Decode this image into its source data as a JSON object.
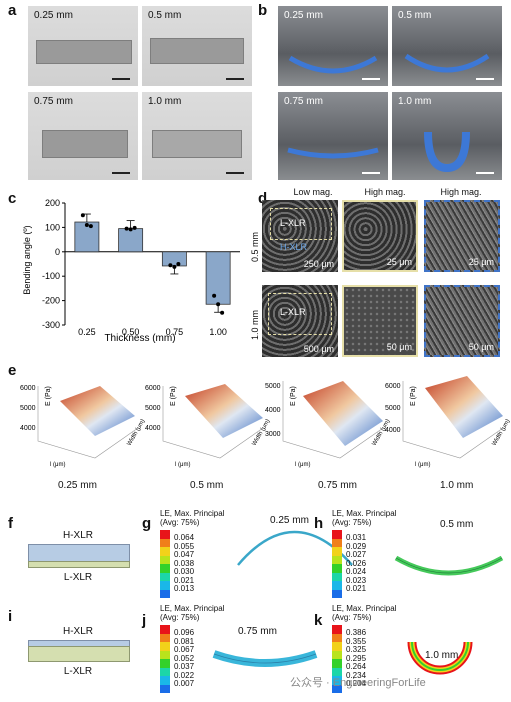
{
  "panels": {
    "a": "a",
    "b": "b",
    "c": "c",
    "d": "d",
    "e": "e",
    "f": "f",
    "g": "g",
    "h": "h",
    "i": "i",
    "j": "j",
    "k": "k"
  },
  "panel_a": {
    "labels": [
      "0.25 mm",
      "0.5 mm",
      "0.75 mm",
      "1.0 mm"
    ]
  },
  "panel_b": {
    "labels": [
      "0.25 mm",
      "0.5 mm",
      "0.75 mm",
      "1.0 mm"
    ]
  },
  "chart_data": {
    "type": "bar",
    "categories": [
      "0.25",
      "0.50",
      "0.75",
      "1.00"
    ],
    "values": [
      122,
      95,
      -58,
      -215
    ],
    "points": [
      [
        150,
        110,
        105
      ],
      [
        95,
        92,
        98
      ],
      [
        -55,
        -62,
        -50
      ],
      [
        -180,
        -215,
        -250
      ]
    ],
    "xlabel": "Thickness (mm)",
    "ylabel": "Bending angle (º)",
    "ylim": [
      -300,
      200
    ],
    "yticks": [
      "200",
      "100",
      "0",
      "-100",
      "-200",
      "-300"
    ],
    "bar_color": "#8aa7c9"
  },
  "panel_d": {
    "col_headers": [
      "Low mag.",
      "High mag.",
      "High mag."
    ],
    "row_labels": [
      "0.5 mm",
      "1.0 mm"
    ],
    "top_labels": {
      "lxlr": "L-XLR",
      "hxlr": "H-XLR"
    },
    "bottom_label": "L-XLR",
    "scales": [
      [
        "250 μm",
        "25 μm",
        "25 μm"
      ],
      [
        "500 μm",
        "50 μm",
        "50 μm"
      ]
    ]
  },
  "panel_e": {
    "labels": [
      "0.25 mm",
      "0.5 mm",
      "0.75 mm",
      "1.0 mm"
    ],
    "z_label": "E (Pa)",
    "z_ticks": [
      [
        "6000",
        "5000",
        "4000"
      ],
      [
        "6000",
        "5000",
        "4000"
      ],
      [
        "5000",
        "4000",
        "3000"
      ],
      [
        "6000",
        "5000",
        "4000"
      ]
    ],
    "x_label": "l (μm)",
    "y_label": "Width (μm)"
  },
  "panel_f": {
    "top": "H-XLR",
    "bottom": "L-XLR"
  },
  "panel_i": {
    "top": "H-XLR",
    "bottom": "L-XLR"
  },
  "legend_title": [
    "LE, Max. Principal",
    "(Avg: 75%)"
  ],
  "legend_colors": [
    "#e8141a",
    "#f07f1a",
    "#f2d21a",
    "#b9e31c",
    "#33d12a",
    "#1cd6a8",
    "#1ab7e8",
    "#1a6de8"
  ],
  "panel_g": {
    "values": [
      "0.064",
      "0.055",
      "0.047",
      "0.038",
      "0.030",
      "0.021",
      "0.013"
    ],
    "label": "0.25 mm"
  },
  "panel_h": {
    "values": [
      "0.031",
      "0.029",
      "0.027",
      "0.026",
      "0.024",
      "0.023",
      "0.021"
    ],
    "label": "0.5 mm"
  },
  "panel_j": {
    "values": [
      "0.096",
      "0.081",
      "0.067",
      "0.052",
      "0.037",
      "0.022",
      "0.007"
    ],
    "label": "0.75 mm"
  },
  "panel_k": {
    "values": [
      "0.386",
      "0.355",
      "0.325",
      "0.295",
      "0.264",
      "0.234",
      "0.204"
    ],
    "label": "1.0 mm"
  },
  "watermark": "公众号 · EngineeringForLife"
}
